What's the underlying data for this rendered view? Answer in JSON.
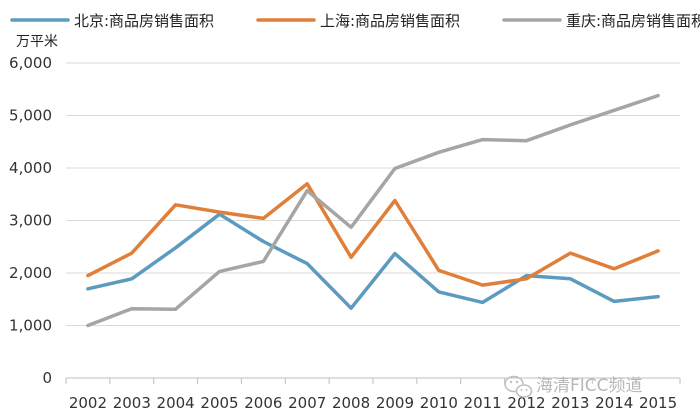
{
  "chart_data": {
    "type": "line",
    "unit_label": "万平米",
    "categories": [
      "2002",
      "2003",
      "2004",
      "2005",
      "2006",
      "2007",
      "2008",
      "2009",
      "2010",
      "2011",
      "2012",
      "2013",
      "2014",
      "2015"
    ],
    "ylim": [
      0,
      6000
    ],
    "yticks": [
      0,
      1000,
      2000,
      3000,
      4000,
      5000,
      6000
    ],
    "ytick_labels": [
      "0",
      "1,000",
      "2,000",
      "3,000",
      "4,000",
      "5,000",
      "6,000"
    ],
    "grid": true,
    "legend_position": "top",
    "series": [
      {
        "name": "北京:商品房销售面积",
        "color": "#5b9bbf",
        "values": [
          1700,
          1890,
          2480,
          3120,
          2600,
          2180,
          1330,
          2370,
          1640,
          1440,
          1950,
          1890,
          1460,
          1550
        ]
      },
      {
        "name": "上海:商品房销售面积",
        "color": "#e07f3a",
        "values": [
          1950,
          2380,
          3300,
          3160,
          3040,
          3700,
          2300,
          3380,
          2050,
          1770,
          1890,
          2380,
          2080,
          2420
        ]
      },
      {
        "name": "重庆:商品房销售面积",
        "color": "#a5a5a5",
        "values": [
          1000,
          1320,
          1310,
          2030,
          2220,
          3570,
          2870,
          3990,
          4300,
          4540,
          4520,
          4820,
          5100,
          5380
        ]
      }
    ]
  },
  "watermark": {
    "text": "海清FICC频道",
    "icon": "wechat-icon"
  }
}
